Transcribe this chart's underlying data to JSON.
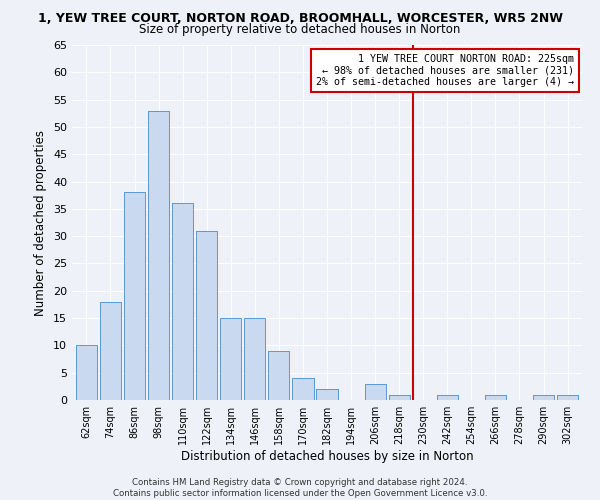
{
  "title": "1, YEW TREE COURT, NORTON ROAD, BROOMHALL, WORCESTER, WR5 2NW",
  "subtitle": "Size of property relative to detached houses in Norton",
  "xlabel": "Distribution of detached houses by size in Norton",
  "ylabel": "Number of detached properties",
  "bar_labels": [
    "62sqm",
    "74sqm",
    "86sqm",
    "98sqm",
    "110sqm",
    "122sqm",
    "134sqm",
    "146sqm",
    "158sqm",
    "170sqm",
    "182sqm",
    "194sqm",
    "206sqm",
    "218sqm",
    "230sqm",
    "242sqm",
    "254sqm",
    "266sqm",
    "278sqm",
    "290sqm",
    "302sqm"
  ],
  "bar_values": [
    10,
    18,
    38,
    53,
    36,
    31,
    15,
    15,
    9,
    4,
    2,
    0,
    3,
    1,
    0,
    1,
    0,
    1,
    0,
    1,
    1
  ],
  "bar_color": "#c9d9f0",
  "bar_edge_color": "#5b9bd5",
  "vline_color": "#cc0000",
  "ylim": [
    0,
    65
  ],
  "yticks": [
    0,
    5,
    10,
    15,
    20,
    25,
    30,
    35,
    40,
    45,
    50,
    55,
    60,
    65
  ],
  "annotation_line1": "1 YEW TREE COURT NORTON ROAD: 225sqm",
  "annotation_line2": "← 98% of detached houses are smaller (231)",
  "annotation_line3": "2% of semi-detached houses are larger (4) →",
  "footer1": "Contains HM Land Registry data © Crown copyright and database right 2024.",
  "footer2": "Contains public sector information licensed under the Open Government Licence v3.0.",
  "bg_color": "#eef2f8",
  "grid_color": "#ffffff"
}
